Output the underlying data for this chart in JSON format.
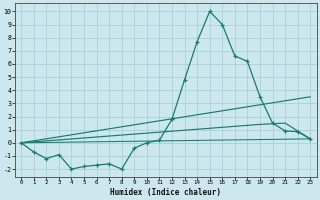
{
  "xlabel": "Humidex (Indice chaleur)",
  "xlim": [
    -0.5,
    23.5
  ],
  "ylim": [
    -2.6,
    10.6
  ],
  "xticks": [
    0,
    1,
    2,
    3,
    4,
    5,
    6,
    7,
    8,
    9,
    10,
    11,
    12,
    13,
    14,
    15,
    16,
    17,
    18,
    19,
    20,
    21,
    22,
    23
  ],
  "yticks": [
    -2,
    -1,
    0,
    1,
    2,
    3,
    4,
    5,
    6,
    7,
    8,
    9,
    10
  ],
  "bg_color": "#cce8ee",
  "line_color": "#1a7a6e",
  "grid_color": "#aad4dc",
  "main_x": [
    0,
    1,
    2,
    3,
    4,
    5,
    6,
    7,
    8,
    9,
    10,
    11,
    12,
    13,
    14,
    15,
    16,
    17,
    18,
    19,
    20,
    21,
    22,
    23
  ],
  "main_y": [
    0.0,
    -0.7,
    -1.2,
    -0.9,
    -2.0,
    -1.8,
    -1.7,
    -1.6,
    -2.0,
    -0.4,
    0.0,
    0.2,
    1.8,
    4.8,
    7.7,
    10.0,
    9.0,
    6.6,
    6.2,
    3.5,
    1.5,
    0.9,
    0.85,
    0.3
  ],
  "line2_x": [
    0,
    23
  ],
  "line2_y": [
    0.0,
    3.5
  ],
  "line3_x": [
    0,
    19,
    21,
    23
  ],
  "line3_y": [
    0.0,
    1.4,
    1.5,
    0.3
  ],
  "line4_x": [
    0,
    23
  ],
  "line4_y": [
    0.0,
    0.3
  ]
}
